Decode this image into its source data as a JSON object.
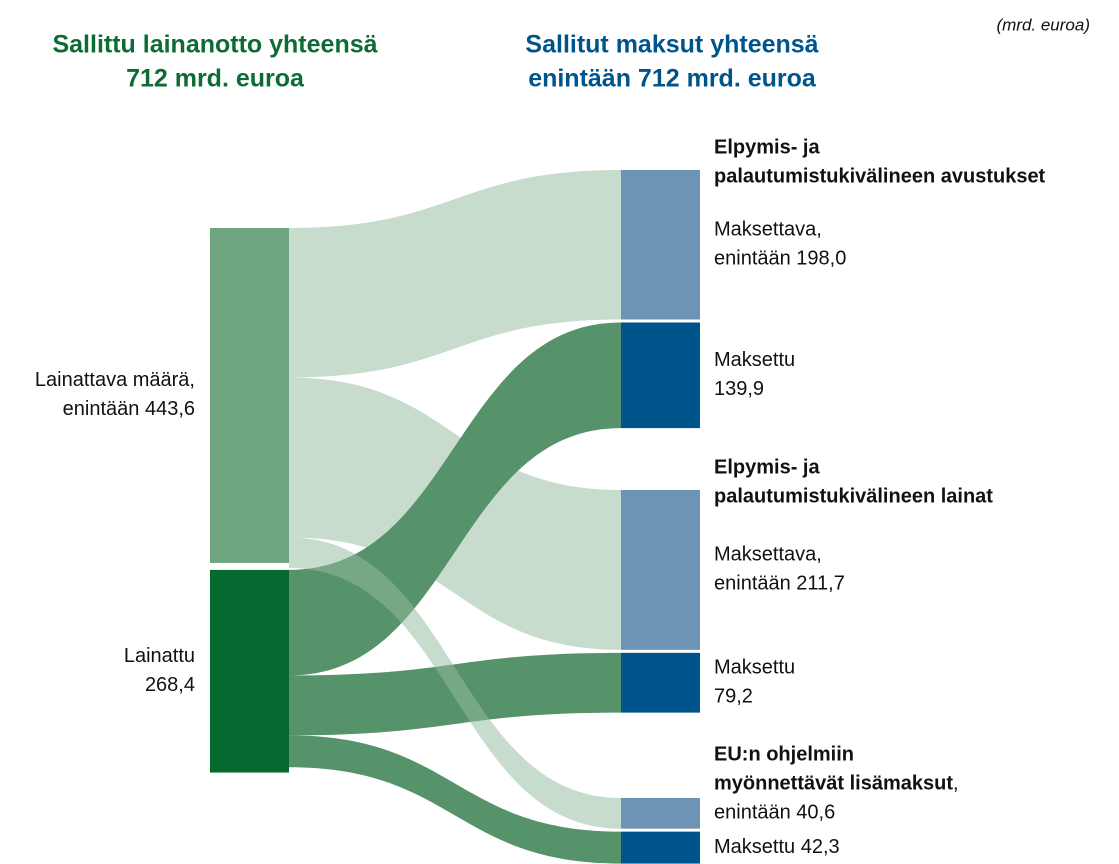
{
  "chart_data": {
    "type": "sankey",
    "left_title": [
      "Sallittu lainanotto yhteensä",
      "712 mrd. euroa"
    ],
    "right_title": [
      "Sallitut maksut yhteensä",
      "enintään 712 mrd. euroa"
    ],
    "unit_note": "(mrd. euroa)",
    "groups": [
      {
        "title": [
          "Elpymis- ja",
          "palautumistukivälineen avustukset"
        ]
      },
      {
        "title": [
          "Elpymis- ja",
          "palautumistukivälineen lainat"
        ]
      },
      {
        "title": [
          "EU:n ohjelmiin",
          "myönnettävät lisämaksut"
        ],
        "title_suffix": ","
      }
    ],
    "nodes": [
      {
        "side": "left",
        "label": [
          "Lainattava määrä,",
          "enintään 443,6"
        ],
        "value": 443.6,
        "color": "#6fa480"
      },
      {
        "side": "left",
        "label": [
          "Lainattu",
          "268,4"
        ],
        "value": 268.4,
        "color": "#066a30"
      },
      {
        "side": "right",
        "group": 0,
        "label": [
          "Maksettava,",
          "enintään 198,0"
        ],
        "value": 198.0,
        "color": "#6d93b5"
      },
      {
        "side": "right",
        "group": 0,
        "label": [
          "Maksettu",
          "139,9"
        ],
        "value": 139.9,
        "color": "#00548c"
      },
      {
        "side": "right",
        "group": 1,
        "label": [
          "Maksettava,",
          "enintään 211,7"
        ],
        "value": 211.7,
        "color": "#6d93b5"
      },
      {
        "side": "right",
        "group": 1,
        "label": [
          "Maksettu",
          "79,2"
        ],
        "value": 79.2,
        "color": "#00548c"
      },
      {
        "side": "right",
        "group": 2,
        "label": [
          "enintään 40,6"
        ],
        "value": 40.6,
        "color": "#6d93b5"
      },
      {
        "side": "right",
        "group": 2,
        "label": [
          "Maksettu 42,3"
        ],
        "value": 42.3,
        "color": "#00548c"
      }
    ],
    "links": [
      {
        "source": 0,
        "target": 2,
        "color": "#93bca0"
      },
      {
        "source": 0,
        "target": 4,
        "color": "#93bca0"
      },
      {
        "source": 1,
        "target": 3,
        "color": "#56926a"
      },
      {
        "source": 1,
        "target": 5,
        "color": "#56926a"
      },
      {
        "source": 1,
        "target": 7,
        "color": "#56926a"
      },
      {
        "source": 0,
        "target": 6,
        "color": "#93bca0"
      }
    ]
  }
}
